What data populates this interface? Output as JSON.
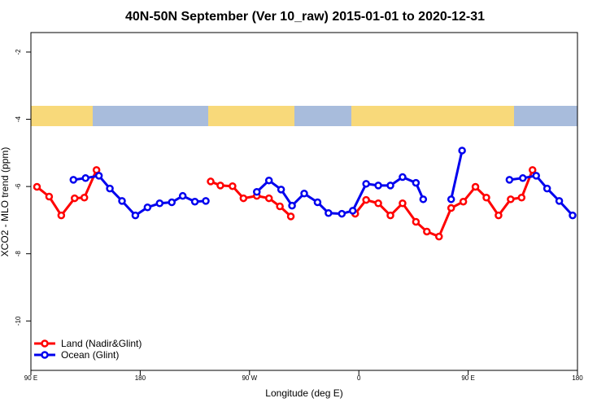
{
  "chart_data": {
    "type": "line",
    "title": "40N-50N September (Ver 10_raw)   2015-01-01 to 2020-12-31",
    "x_label": "Longitude (deg E)",
    "y_label": "XCO2 - MLO trend (ppm)",
    "xlim": [
      90,
      540
    ],
    "xticks": [
      {
        "value": 90,
        "label": "90 E"
      },
      180,
      {
        "value": 270,
        "label": "90 W"
      },
      {
        "value": 360,
        "label": "0"
      },
      {
        "value": 450,
        "label": "90 E"
      },
      {
        "value": 540,
        "label": "180"
      }
    ],
    "ylim": [
      -11.47,
      -1.42
    ],
    "yticks": [
      -10,
      -8,
      -6,
      -4,
      -2
    ],
    "legend": "bottom-left",
    "series": [
      {
        "name": "Land (Nadir&Glint)",
        "color": "#ff0000",
        "x": [
          95,
          105,
          115,
          126,
          134,
          144,
          null,
          238,
          246,
          256,
          265,
          276,
          286,
          295,
          304,
          null,
          357,
          366,
          376,
          386,
          396,
          407,
          416,
          426,
          436,
          446,
          456,
          465,
          475,
          485,
          494,
          503
        ],
        "values": [
          -6.01,
          -6.3,
          -6.86,
          -6.35,
          -6.33,
          -5.51,
          null,
          -5.85,
          -5.97,
          -5.99,
          -6.35,
          -6.28,
          -6.35,
          -6.59,
          -6.89,
          null,
          -6.81,
          -6.4,
          -6.5,
          -6.86,
          -6.5,
          -7.05,
          -7.34,
          -7.49,
          -6.64,
          -6.45,
          -6.01,
          -6.33,
          -6.86,
          -6.38,
          -6.33,
          -5.51
        ]
      },
      {
        "name": "Ocean (Glint)",
        "color": "#0000ee",
        "x": [
          125,
          135,
          146,
          155,
          165,
          176,
          186,
          196,
          206,
          215,
          225,
          234,
          null,
          276,
          286,
          296,
          305,
          315,
          326,
          335,
          346,
          355,
          366,
          376,
          386,
          396,
          407,
          413,
          null,
          436,
          445,
          null,
          484,
          495,
          506,
          515,
          525,
          536
        ],
        "values": [
          -5.8,
          -5.75,
          -5.68,
          -6.06,
          -6.43,
          -6.86,
          -6.62,
          -6.5,
          -6.47,
          -6.28,
          -6.45,
          -6.43,
          null,
          -6.16,
          -5.82,
          -6.09,
          -6.57,
          -6.21,
          -6.47,
          -6.79,
          -6.81,
          -6.72,
          -5.92,
          -5.97,
          -5.97,
          -5.72,
          -5.89,
          -6.38,
          null,
          -6.38,
          -4.93,
          null,
          -5.8,
          -5.75,
          -5.68,
          -6.06,
          -6.43,
          -6.86
        ]
      }
    ]
  }
}
